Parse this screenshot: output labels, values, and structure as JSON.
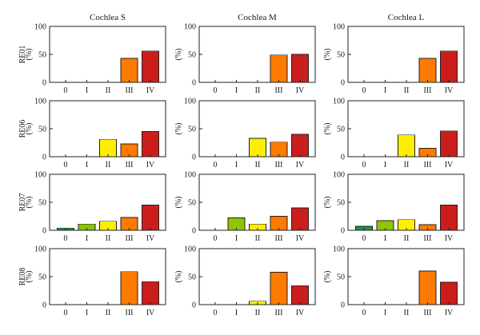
{
  "chart_data": {
    "type": "bar",
    "column_titles": [
      "Cochlea S",
      "Cochlea M",
      "Cochlea L"
    ],
    "row_labels": [
      "RE01",
      "RE06",
      "RE07",
      "RE08"
    ],
    "categories": [
      "0",
      "I",
      "II",
      "III",
      "IV"
    ],
    "category_colors": [
      "#1a9641",
      "#8ec400",
      "#ffee00",
      "#ff7a00",
      "#cc1d1d"
    ],
    "ylabel": "(%)",
    "ylim": [
      0,
      100
    ],
    "yticks": [
      0,
      50,
      100
    ],
    "grid": false,
    "panels": [
      [
        {
          "values": [
            0,
            0,
            0,
            43,
            56
          ]
        },
        {
          "values": [
            0,
            0,
            0,
            49,
            50
          ]
        },
        {
          "values": [
            0,
            0,
            0,
            43,
            56
          ]
        }
      ],
      [
        {
          "values": [
            0,
            0,
            31,
            23,
            45
          ]
        },
        {
          "values": [
            0,
            0,
            33,
            26,
            40
          ]
        },
        {
          "values": [
            0,
            0,
            39,
            15,
            46
          ]
        }
      ],
      [
        {
          "values": [
            4,
            11,
            16,
            23,
            45
          ]
        },
        {
          "values": [
            0,
            22,
            11,
            25,
            40
          ]
        },
        {
          "values": [
            7,
            17,
            19,
            10,
            45
          ]
        }
      ],
      [
        {
          "values": [
            0,
            0,
            0,
            59,
            41
          ]
        },
        {
          "values": [
            0,
            0,
            6,
            58,
            34
          ]
        },
        {
          "values": [
            0,
            0,
            0,
            60,
            40
          ]
        }
      ]
    ]
  }
}
